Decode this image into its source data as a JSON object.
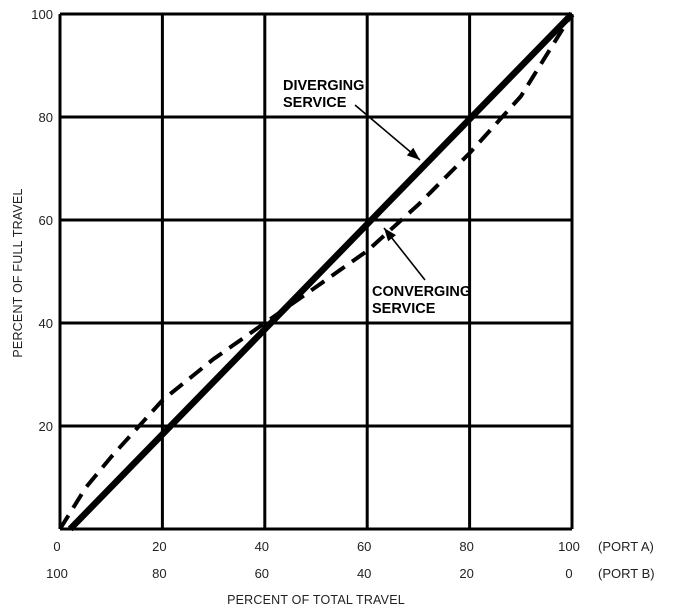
{
  "chart_data": {
    "type": "line",
    "xlabel": "PERCENT OF TOTAL TRAVEL",
    "ylabel": "PERCENT OF FULL TRAVEL",
    "xlim": [
      0,
      100
    ],
    "ylim": [
      0,
      100
    ],
    "grid": true,
    "x_ticks_port_a": [
      "0",
      "20",
      "40",
      "60",
      "80",
      "100"
    ],
    "x_ticks_port_b": [
      "100",
      "80",
      "60",
      "40",
      "20",
      "0"
    ],
    "port_a_label": "(PORT A)",
    "port_b_label": "(PORT B)",
    "y_ticks": [
      "20",
      "40",
      "60",
      "80",
      "100"
    ],
    "series": [
      {
        "name": "DIVERGING SERVICE",
        "style": "solid",
        "points": [
          [
            2,
            0
          ],
          [
            100,
            100
          ]
        ]
      },
      {
        "name": "CONVERGING SERVICE",
        "style": "dashed",
        "points": [
          [
            0,
            0
          ],
          [
            5,
            8
          ],
          [
            10,
            14
          ],
          [
            20,
            25
          ],
          [
            30,
            33
          ],
          [
            40,
            40
          ],
          [
            50,
            47
          ],
          [
            60,
            54
          ],
          [
            70,
            63
          ],
          [
            80,
            73
          ],
          [
            90,
            84
          ],
          [
            100,
            100
          ]
        ]
      }
    ],
    "annotations": [
      {
        "lines": [
          "DIVERGING",
          "SERVICE"
        ],
        "points_to_series": 0
      },
      {
        "lines": [
          "CONVERGING",
          "SERVICE"
        ],
        "points_to_series": 1
      }
    ]
  }
}
